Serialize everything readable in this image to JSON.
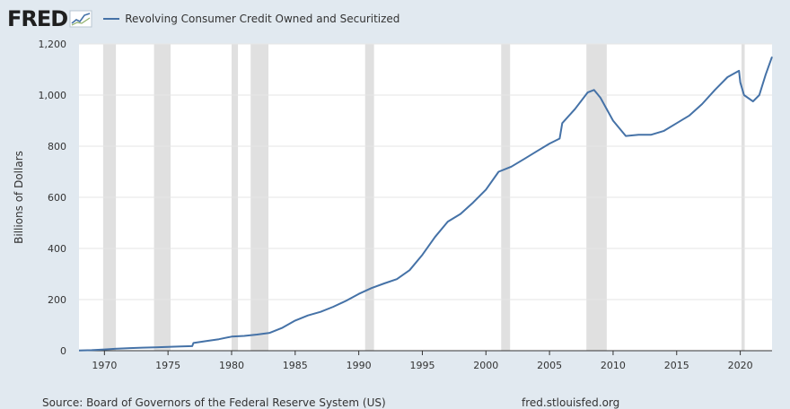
{
  "header": {
    "logo_text": "FRED",
    "logo_icon": "trend-chart-icon"
  },
  "footer": {
    "source": "Source: Board of Governors of the Federal Reserve System (US)",
    "site": "fred.stlouisfed.org"
  },
  "colors": {
    "line": "#4572a7",
    "recession": "#e0e0e0",
    "background": "#e1e9f0",
    "plot": "#ffffff"
  },
  "chart_data": {
    "type": "line",
    "title": "",
    "xlabel": "",
    "ylabel": "Billions of Dollars",
    "xlim": [
      1968.0,
      2022.5
    ],
    "ylim": [
      0,
      1200
    ],
    "yticks": [
      0,
      200,
      400,
      600,
      800,
      1000,
      1200
    ],
    "ytick_labels": [
      "0",
      "200",
      "400",
      "600",
      "800",
      "1,000",
      "1,200"
    ],
    "xticks": [
      1970,
      1975,
      1980,
      1985,
      1990,
      1995,
      2000,
      2005,
      2010,
      2015,
      2020
    ],
    "xtick_labels": [
      "1970",
      "1975",
      "1980",
      "1985",
      "1990",
      "1995",
      "2000",
      "2005",
      "2010",
      "2015",
      "2020"
    ],
    "grid": true,
    "legend": "top-left",
    "recessions": [
      [
        1969.9,
        1970.9
      ],
      [
        1973.9,
        1975.2
      ],
      [
        1980.0,
        1980.5
      ],
      [
        1981.5,
        1982.9
      ],
      [
        1990.5,
        1991.2
      ],
      [
        2001.2,
        2001.9
      ],
      [
        2007.9,
        2009.5
      ],
      [
        2020.1,
        2020.35
      ]
    ],
    "series": [
      {
        "name": "Revolving Consumer Credit Owned and Securitized",
        "x": [
          1968.0,
          1969.0,
          1970.0,
          1971.0,
          1972.0,
          1973.0,
          1974.0,
          1975.0,
          1976.0,
          1976.9,
          1977.0,
          1978.0,
          1979.0,
          1980.0,
          1981.0,
          1982.0,
          1983.0,
          1984.0,
          1985.0,
          1986.0,
          1987.0,
          1988.0,
          1989.0,
          1990.0,
          1991.0,
          1992.0,
          1993.0,
          1994.0,
          1995.0,
          1996.0,
          1997.0,
          1998.0,
          1999.0,
          2000.0,
          2001.0,
          2002.0,
          2003.0,
          2004.0,
          2005.0,
          2005.8,
          2006.0,
          2007.0,
          2008.0,
          2008.5,
          2009.0,
          2010.0,
          2011.0,
          2012.0,
          2013.0,
          2014.0,
          2015.0,
          2016.0,
          2017.0,
          2018.0,
          2019.0,
          2019.9,
          2020.0,
          2020.3,
          2021.0,
          2021.5,
          2022.0,
          2022.5
        ],
        "values": [
          1,
          2,
          5,
          8,
          10,
          12,
          13,
          15,
          17,
          18,
          30,
          38,
          45,
          55,
          58,
          63,
          70,
          90,
          118,
          138,
          152,
          172,
          195,
          222,
          245,
          263,
          280,
          315,
          375,
          445,
          505,
          535,
          580,
          630,
          700,
          720,
          750,
          780,
          810,
          830,
          890,
          945,
          1010,
          1020,
          990,
          900,
          840,
          845,
          845,
          860,
          890,
          920,
          965,
          1020,
          1070,
          1095,
          1050,
          1000,
          975,
          1000,
          1080,
          1150
        ]
      }
    ]
  }
}
